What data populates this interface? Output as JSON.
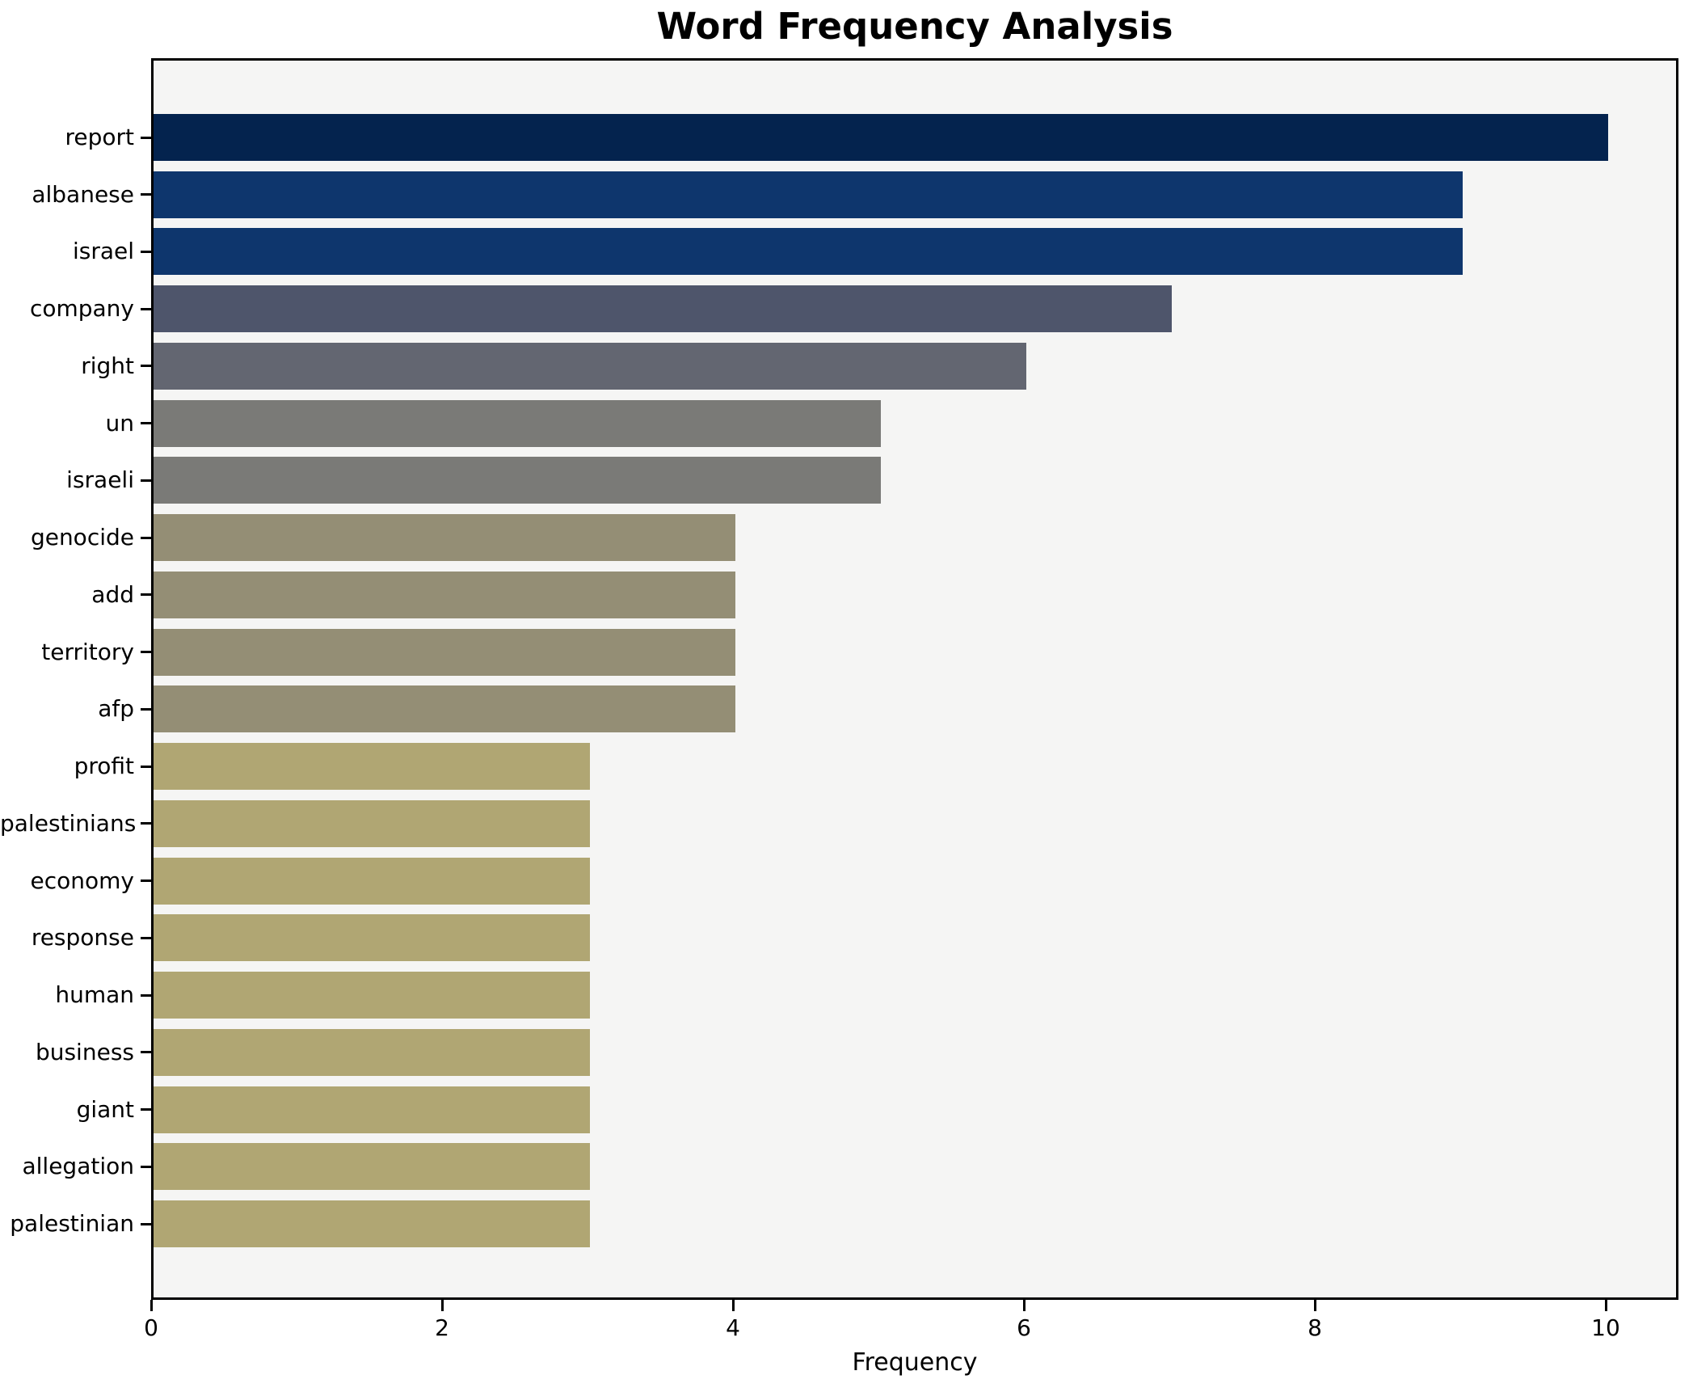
{
  "chart_data": {
    "type": "bar",
    "orientation": "horizontal",
    "title": "Word Frequency Analysis",
    "xlabel": "Frequency",
    "ylabel": "",
    "categories": [
      "report",
      "albanese",
      "israel",
      "company",
      "right",
      "un",
      "israeli",
      "genocide",
      "add",
      "territory",
      "afp",
      "profit",
      "palestinians",
      "economy",
      "response",
      "human",
      "business",
      "giant",
      "allegation",
      "palestinian"
    ],
    "values": [
      10,
      9,
      9,
      7,
      6,
      5,
      5,
      4,
      4,
      4,
      4,
      3,
      3,
      3,
      3,
      3,
      3,
      3,
      3,
      3
    ],
    "bar_colors": [
      "#04234e",
      "#0e366d",
      "#0e366d",
      "#4e556b",
      "#636671",
      "#7a7a77",
      "#7a7a77",
      "#948e75",
      "#948e75",
      "#948e75",
      "#948e75",
      "#b0a673",
      "#b0a673",
      "#b0a673",
      "#b0a673",
      "#b0a673",
      "#b0a673",
      "#b0a673",
      "#b0a673",
      "#b0a673"
    ],
    "xlim": [
      0,
      10.5
    ],
    "x_ticks": [
      0,
      2,
      4,
      6,
      8,
      10
    ],
    "grid": false,
    "legend": false,
    "colors": {
      "figure_bg": "#ffffff",
      "plot_bg": "#f5f5f4",
      "spine": "#000000",
      "text": "#000000"
    }
  }
}
